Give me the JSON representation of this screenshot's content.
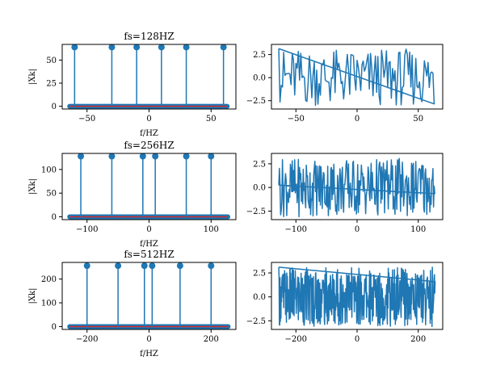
{
  "colors": {
    "stem": "#1f77b4",
    "marker": "#1f77b4",
    "baseline": "#d62728",
    "line": "#1f77b4",
    "frame": "#000000"
  },
  "chart_data": [
    {
      "type": "stem",
      "title": "fs=128HZ",
      "xlabel": "f/HZ",
      "ylabel": "|Xk|",
      "xlim": [
        -70,
        70
      ],
      "ylim": [
        -3,
        67
      ],
      "xticks": [
        -50,
        0,
        50
      ],
      "yticks": [
        0,
        25,
        50
      ],
      "xtick_labels": [
        "−50",
        "0",
        "50"
      ],
      "ytick_labels": [
        "0",
        "25",
        "50"
      ],
      "x_range": [
        -64,
        63
      ],
      "n_points": 128,
      "peaks": [
        {
          "x": -60,
          "y": 64
        },
        {
          "x": -30,
          "y": 64
        },
        {
          "x": -10,
          "y": 64
        },
        {
          "x": 10,
          "y": 64
        },
        {
          "x": 30,
          "y": 64
        },
        {
          "x": 60,
          "y": 64
        }
      ]
    },
    {
      "type": "line",
      "title": "",
      "xlim": [
        -70,
        70
      ],
      "ylim": [
        -3.4,
        3.6
      ],
      "xticks": [
        -50,
        0,
        50
      ],
      "yticks": [
        -2.5,
        0,
        2.5
      ],
      "xtick_labels": [
        "−50",
        "0",
        "50"
      ],
      "ytick_labels": [
        "−2.5",
        "0.0",
        "2.5"
      ],
      "x_range": [
        -64,
        63
      ],
      "n_points": 128,
      "start_value": 3.14,
      "end_value": -2.85
    },
    {
      "type": "stem",
      "title": "fs=256HZ",
      "xlabel": "f/HZ",
      "ylabel": "|Xk|",
      "xlim": [
        -140,
        140
      ],
      "ylim": [
        -6,
        134
      ],
      "xticks": [
        -100,
        0,
        100
      ],
      "yticks": [
        0,
        50,
        100
      ],
      "xtick_labels": [
        "−100",
        "0",
        "100"
      ],
      "ytick_labels": [
        "0",
        "50",
        "100"
      ],
      "x_range": [
        -128,
        127
      ],
      "n_points": 256,
      "peaks": [
        {
          "x": -110,
          "y": 128
        },
        {
          "x": -60,
          "y": 128
        },
        {
          "x": -10,
          "y": 128
        },
        {
          "x": 10,
          "y": 128
        },
        {
          "x": 60,
          "y": 128
        },
        {
          "x": 100,
          "y": 128
        }
      ]
    },
    {
      "type": "line",
      "title": "",
      "xlim": [
        -140,
        140
      ],
      "ylim": [
        -3.4,
        3.6
      ],
      "xticks": [
        -100,
        0,
        100
      ],
      "yticks": [
        -2.5,
        0,
        2.5
      ],
      "xtick_labels": [
        "−100",
        "0",
        "100"
      ],
      "ytick_labels": [
        "−2.5",
        "0.0",
        "2.5"
      ],
      "x_range": [
        -128,
        127
      ],
      "n_points": 256,
      "start_value": 0.25,
      "end_value": -0.65
    },
    {
      "type": "stem",
      "title": "fs=512HZ",
      "xlabel": "f/HZ",
      "ylabel": "|Xk|",
      "xlim": [
        -280,
        280
      ],
      "ylim": [
        -12,
        270
      ],
      "xticks": [
        -200,
        0,
        200
      ],
      "yticks": [
        0,
        100,
        200
      ],
      "xtick_labels": [
        "−200",
        "0",
        "200"
      ],
      "ytick_labels": [
        "0",
        "100",
        "200"
      ],
      "x_range": [
        -256,
        255
      ],
      "n_points": 512,
      "peaks": [
        {
          "x": -200,
          "y": 256
        },
        {
          "x": -100,
          "y": 256
        },
        {
          "x": -15,
          "y": 256
        },
        {
          "x": 10,
          "y": 256
        },
        {
          "x": 100,
          "y": 256
        },
        {
          "x": 200,
          "y": 256
        }
      ]
    },
    {
      "type": "line",
      "title": "",
      "xlim": [
        -280,
        280
      ],
      "ylim": [
        -3.4,
        3.6
      ],
      "xticks": [
        -200,
        0,
        200
      ],
      "yticks": [
        -2.5,
        0,
        2.5
      ],
      "xtick_labels": [
        "−200",
        "0",
        "200"
      ],
      "ytick_labels": [
        "−2.5",
        "0.0",
        "2.5"
      ],
      "x_range": [
        -256,
        255
      ],
      "n_points": 512,
      "start_value": 3.1,
      "end_value": 1.6
    }
  ]
}
